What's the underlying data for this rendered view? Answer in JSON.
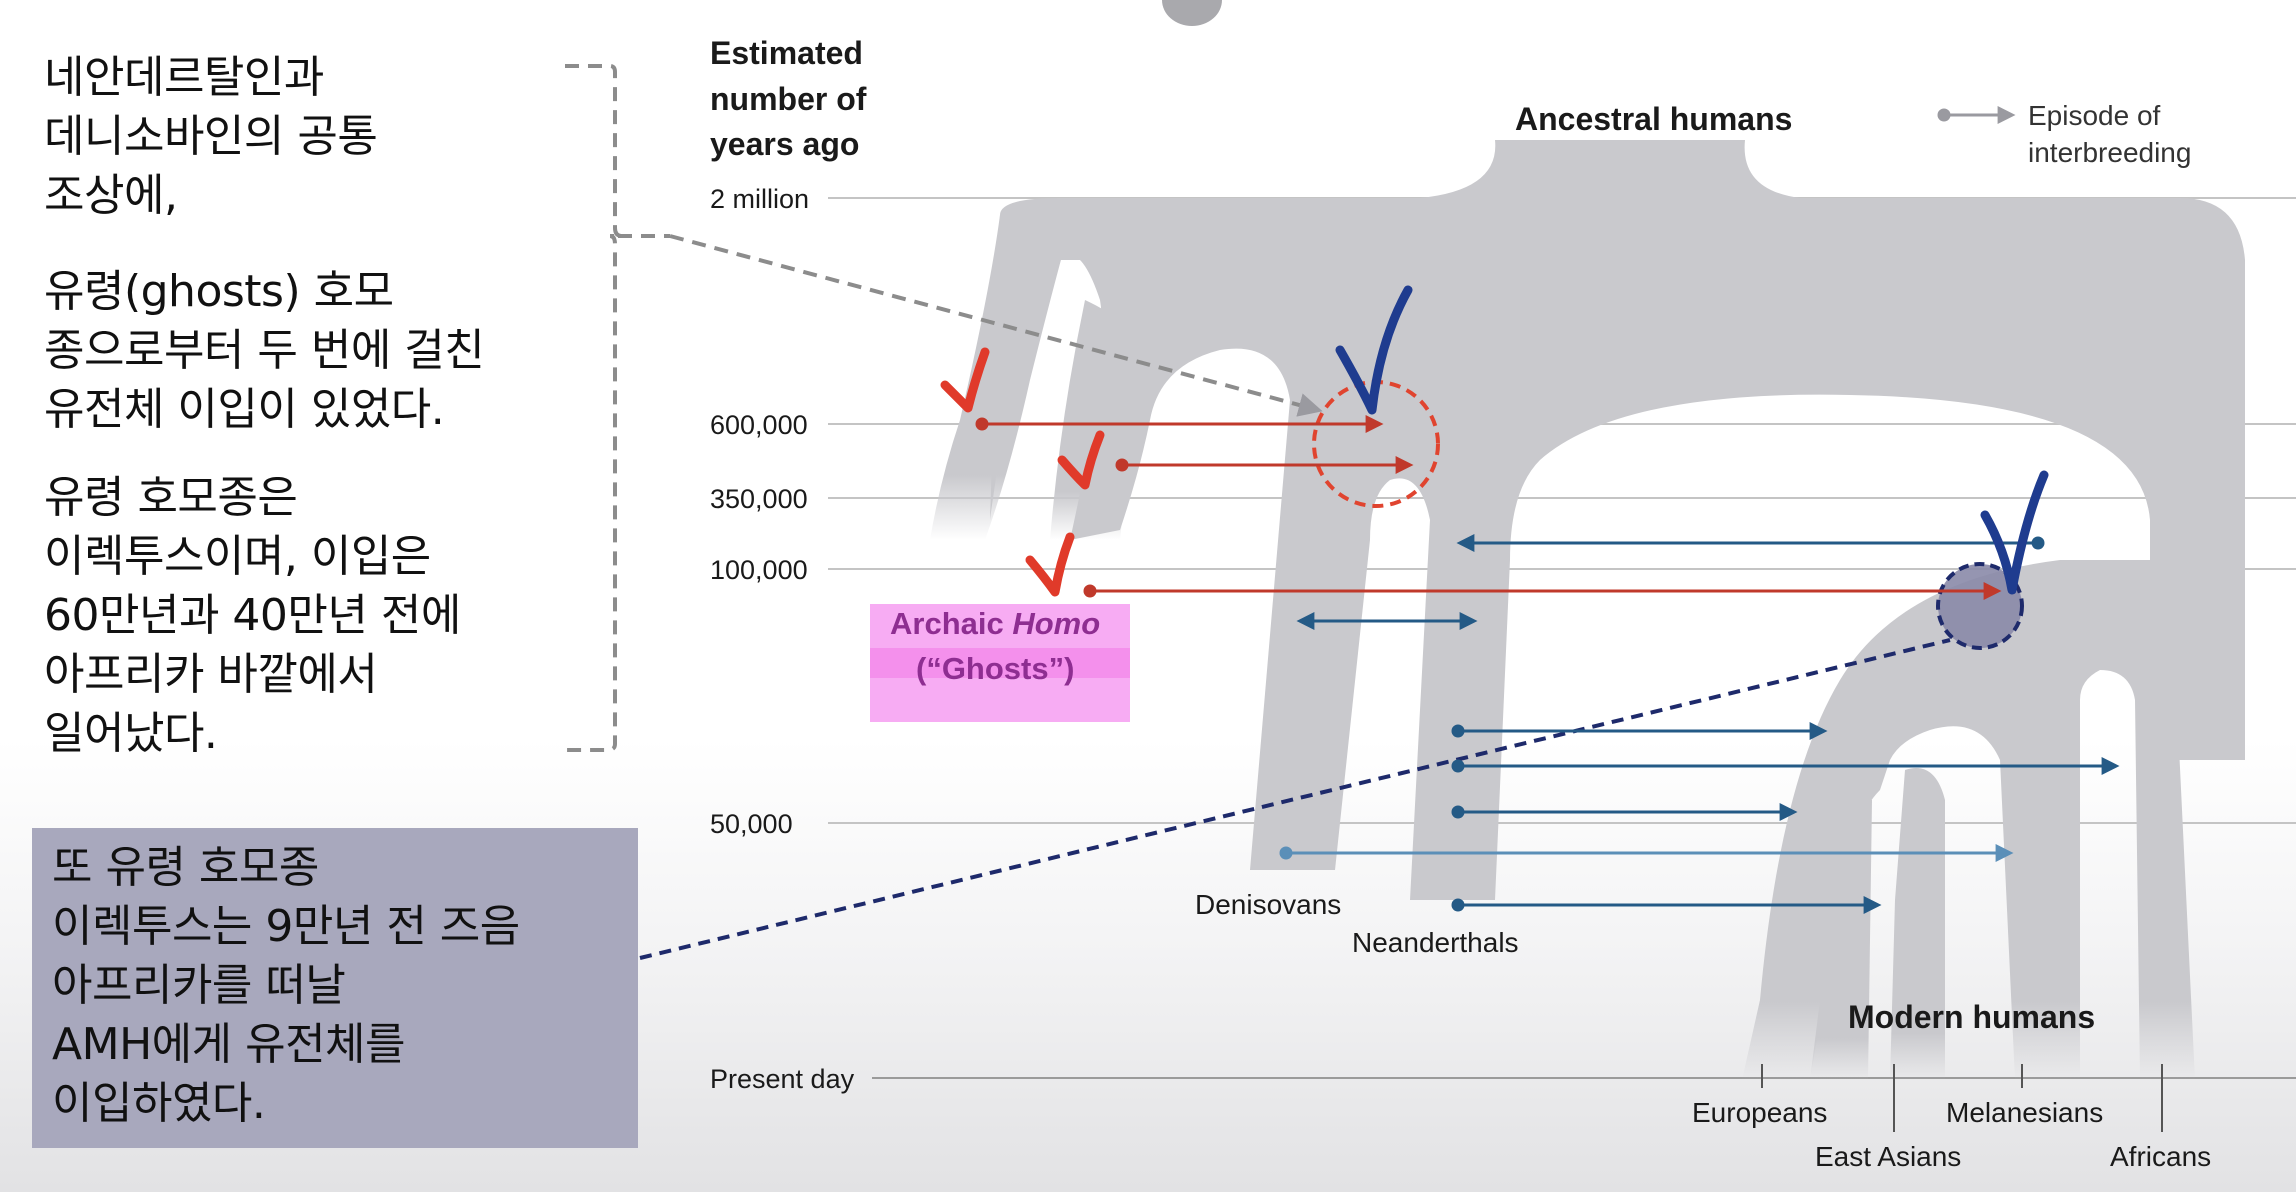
{
  "annotation_left": {
    "paragraph_1": [
      "네안데르탈인과",
      "데니소바인의 공통",
      "조상에,"
    ],
    "paragraph_2": [
      "유령(ghosts) 호모",
      "종으로부터 두 번에 걸친",
      "유전체 이입이 있었다."
    ],
    "paragraph_3": [
      "유령 호모종은",
      "이렉투스이며, 이입은",
      "60만년과 40만년 전에",
      "아프리카 바깥에서",
      "일어났다."
    ]
  },
  "annotation_box": {
    "lines": [
      "또 유령 호모종",
      "이렉투스는 9만년 전 즈음",
      "아프리카를 떠날",
      "AMH에게 유전체를",
      "이입하였다."
    ]
  },
  "axis": {
    "title": [
      "Estimated",
      "number of",
      "years ago"
    ],
    "ticks": [
      "2 million",
      "600,000",
      "350,000",
      "100,000",
      "50,000"
    ],
    "present_label": "Present day"
  },
  "legend": {
    "line1": "Episode of",
    "line2": "interbreeding"
  },
  "populations": {
    "ancestral": "Ancestral humans",
    "ghosts_line1_a": "Archaic ",
    "ghosts_line1_b": "Homo",
    "ghosts_line2": "(“Ghosts”)",
    "denisovans": "Denisovans",
    "neanderthals": "Neanderthals",
    "modern": "Modern humans",
    "europeans": "Europeans",
    "east_asians": "East Asians",
    "melanesians": "Melanesians",
    "africans": "Africans"
  },
  "colors": {
    "tree": "#c9c9cd",
    "ghost_arrow": "#c0392b",
    "modern_arrow": "#245a86",
    "light_arrow": "#5b8fb8",
    "highlight": "#f7a8f2",
    "check_red": "#e03a2a",
    "check_blue": "#1f3c8f",
    "box": "#a8a8bd"
  }
}
